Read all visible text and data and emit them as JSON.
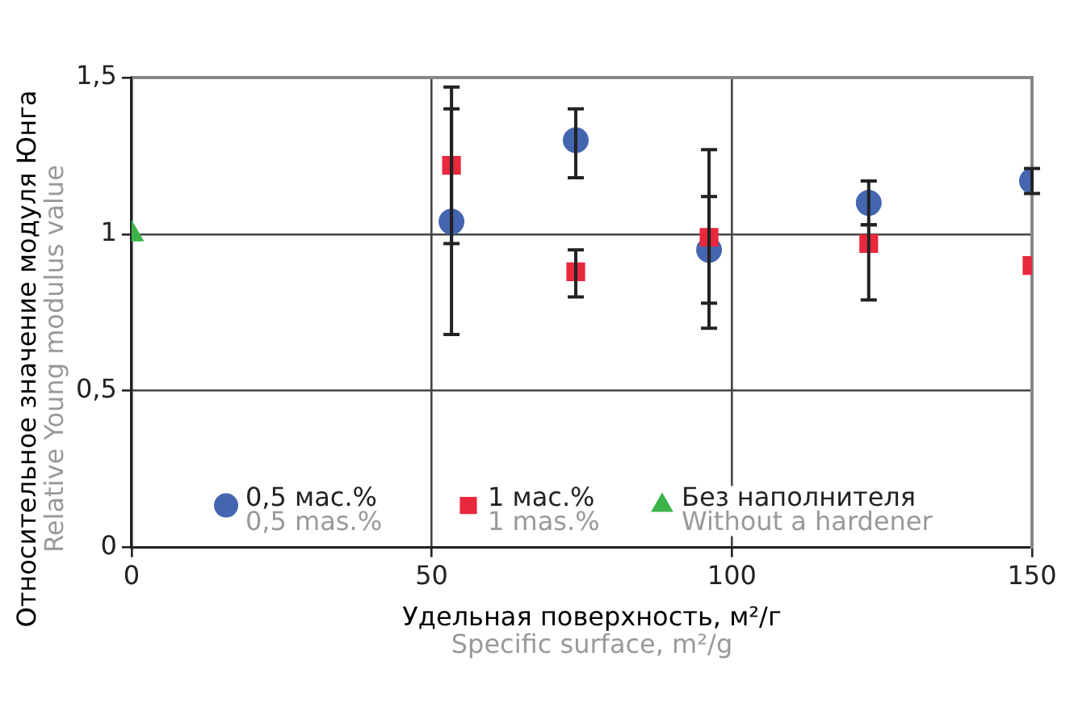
{
  "chart_data": {
    "type": "scatter",
    "xlabel": "Удельная поверхность, м²/г\nSpecific surface, m²/g",
    "ylabel": "Относительное значение модуля Юнга\nRelative Young modulus value",
    "xlim": [
      0,
      150
    ],
    "xticks": [
      0,
      50,
      100,
      150
    ],
    "ylim": [
      0,
      1.5
    ],
    "yticks": [
      0,
      {
        "value": 0.5,
        "label": "0,5"
      },
      1,
      {
        "value": 1.5,
        "label": "1,5"
      }
    ],
    "grid": true,
    "legend": "bottom",
    "series": [
      {
        "name": "0,5 мас.%\n0,5 mas.%",
        "color": "#4466b0",
        "marker": "circle",
        "x": [
          53.3,
          74,
          96.2,
          122.8,
          150
        ],
        "values": [
          1.04,
          1.3,
          0.95,
          1.1,
          1.17
        ],
        "errors": [
          [
            0.68,
            1.4
          ],
          [
            1.18,
            1.4
          ],
          [
            0.78,
            1.12
          ],
          [
            1.03,
            1.17
          ],
          [
            1.13,
            1.21
          ]
        ]
      },
      {
        "name": "1 мас.%\n1 mas.%",
        "color": "#e8283c",
        "marker": "square",
        "x": [
          53.3,
          74,
          96.2,
          122.8,
          150
        ],
        "values": [
          1.22,
          0.88,
          0.99,
          0.97,
          0.9
        ],
        "errors": [
          [
            0.97,
            1.47
          ],
          [
            0.8,
            0.95
          ],
          [
            0.7,
            1.27
          ],
          [
            0.79,
            1.03
          ],
          null
        ]
      },
      {
        "name": "Без наполнителя\nWithout a hardener",
        "color": "#3cb44a",
        "marker": "triangle",
        "x": [
          0
        ],
        "values": [
          1
        ]
      }
    ]
  }
}
